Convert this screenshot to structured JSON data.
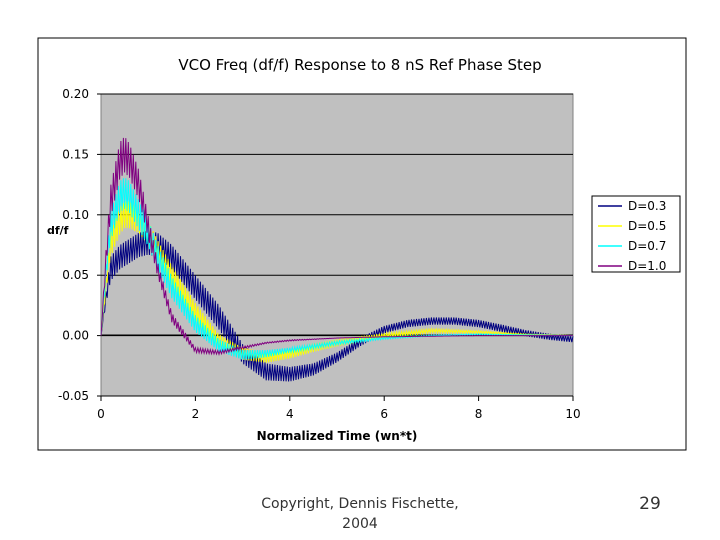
{
  "footer": {
    "copyright_line1": "Copyright, Dennis Fischette,",
    "copyright_line2": "2004",
    "page_number": "29"
  },
  "chart_data": {
    "type": "line",
    "title": "VCO Freq (df/f) Response to 8 nS Ref Phase Step",
    "xlabel": "Normalized Time (wn*t)",
    "ylabel": "df/f",
    "xlim": [
      0,
      10
    ],
    "ylim": [
      -0.05,
      0.2
    ],
    "x_ticks": [
      "0",
      "2",
      "4",
      "6",
      "8",
      "10"
    ],
    "y_ticks": [
      "0.20",
      "0.15",
      "0.10",
      "0.05",
      "0.00",
      "-0.05"
    ],
    "grid": "horizontal",
    "plot_background": "#c0c0c0",
    "legend_position": "right",
    "series": [
      {
        "name": "D=0.3",
        "color": "#000080",
        "x": [
          0,
          0.1,
          0.2,
          0.4,
          0.6,
          0.8,
          1.0,
          1.2,
          1.5,
          2.0,
          2.5,
          3.0,
          3.5,
          4.0,
          4.5,
          5.0,
          5.5,
          6.0,
          6.5,
          7.0,
          7.5,
          8.0,
          8.5,
          9.0,
          9.5,
          10.0
        ],
        "y": [
          0.0,
          0.03,
          0.055,
          0.065,
          0.07,
          0.075,
          0.077,
          0.075,
          0.065,
          0.04,
          0.015,
          -0.015,
          -0.03,
          -0.032,
          -0.028,
          -0.018,
          -0.005,
          0.005,
          0.01,
          0.012,
          0.012,
          0.01,
          0.006,
          0.002,
          -0.001,
          -0.003
        ],
        "ripple": [
          0.0,
          0.01,
          0.02,
          0.02,
          0.02,
          0.02,
          0.02,
          0.02,
          0.02,
          0.02,
          0.02,
          0.016,
          0.014,
          0.012,
          0.01,
          0.008,
          0.007,
          0.006,
          0.006,
          0.006,
          0.006,
          0.006,
          0.006,
          0.005,
          0.005,
          0.005
        ]
      },
      {
        "name": "D=0.5",
        "color": "#ffff00",
        "x": [
          0,
          0.1,
          0.2,
          0.4,
          0.5,
          0.6,
          0.8,
          1.0,
          1.2,
          1.5,
          2.0,
          2.5,
          3.0,
          3.5,
          4.0,
          4.5,
          5.0,
          6.0,
          7.0,
          8.0,
          9.0,
          10.0
        ],
        "y": [
          0.0,
          0.04,
          0.075,
          0.095,
          0.1,
          0.1,
          0.095,
          0.085,
          0.07,
          0.05,
          0.02,
          -0.005,
          -0.015,
          -0.018,
          -0.015,
          -0.01,
          -0.006,
          0.0,
          0.004,
          0.003,
          0.001,
          0.0
        ],
        "ripple": [
          0.0,
          0.012,
          0.02,
          0.022,
          0.022,
          0.022,
          0.02,
          0.02,
          0.018,
          0.016,
          0.014,
          0.012,
          0.01,
          0.009,
          0.008,
          0.007,
          0.006,
          0.004,
          0.003,
          0.002,
          0.001,
          0.0
        ]
      },
      {
        "name": "D=0.7",
        "color": "#00ffff",
        "x": [
          0,
          0.1,
          0.2,
          0.4,
          0.5,
          0.6,
          0.8,
          1.0,
          1.2,
          1.5,
          2.0,
          2.5,
          3.0,
          3.5,
          4.0,
          5.0,
          6.0,
          7.0,
          8.0,
          10.0
        ],
        "y": [
          0.0,
          0.05,
          0.09,
          0.115,
          0.118,
          0.115,
          0.1,
          0.085,
          0.065,
          0.04,
          0.01,
          -0.008,
          -0.016,
          -0.015,
          -0.012,
          -0.006,
          -0.002,
          0.0,
          0.001,
          0.0
        ],
        "ripple": [
          0.0,
          0.014,
          0.024,
          0.026,
          0.026,
          0.026,
          0.024,
          0.022,
          0.02,
          0.018,
          0.014,
          0.01,
          0.008,
          0.006,
          0.004,
          0.003,
          0.002,
          0.001,
          0.001,
          0.0
        ]
      },
      {
        "name": "D=1.0",
        "color": "#800080",
        "x": [
          0,
          0.1,
          0.2,
          0.4,
          0.5,
          0.6,
          0.8,
          1.0,
          1.2,
          1.5,
          2.0,
          2.5,
          3.0,
          3.5,
          4.0,
          5.0,
          6.0,
          8.0,
          10.0
        ],
        "y": [
          0.0,
          0.06,
          0.11,
          0.145,
          0.15,
          0.145,
          0.125,
          0.09,
          0.055,
          0.015,
          -0.012,
          -0.014,
          -0.01,
          -0.006,
          -0.004,
          -0.002,
          -0.001,
          0.0,
          0.0
        ],
        "ripple": [
          0.0,
          0.016,
          0.026,
          0.03,
          0.03,
          0.028,
          0.024,
          0.018,
          0.012,
          0.008,
          0.004,
          0.003,
          0.002,
          0.001,
          0.001,
          0.0,
          0.0,
          0.0,
          0.0
        ]
      }
    ]
  }
}
